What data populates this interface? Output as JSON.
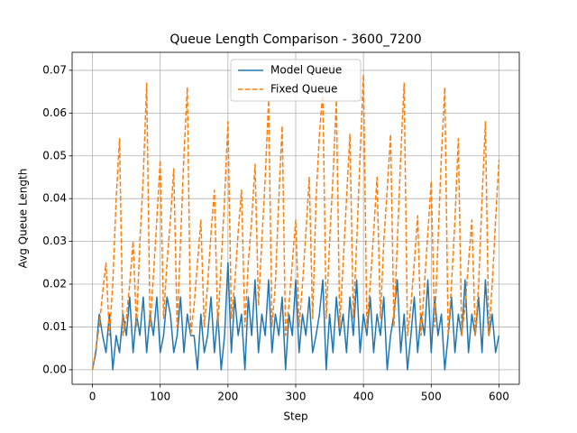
{
  "chart_data": {
    "type": "line",
    "title": "Queue Length Comparison - 3600_7200",
    "xlabel": "Step",
    "ylabel": "Avg Queue Length",
    "x": [
      0,
      5,
      10,
      15,
      20,
      25,
      30,
      35,
      40,
      45,
      50,
      55,
      60,
      65,
      70,
      75,
      80,
      85,
      90,
      95,
      100,
      105,
      110,
      115,
      120,
      125,
      130,
      135,
      140,
      145,
      150,
      155,
      160,
      165,
      170,
      175,
      180,
      185,
      190,
      195,
      200,
      205,
      210,
      215,
      220,
      225,
      230,
      235,
      240,
      245,
      250,
      255,
      260,
      265,
      270,
      275,
      280,
      285,
      290,
      295,
      300,
      305,
      310,
      315,
      320,
      325,
      330,
      335,
      340,
      345,
      350,
      355,
      360,
      365,
      370,
      375,
      380,
      385,
      390,
      395,
      400,
      405,
      410,
      415,
      420,
      425,
      430,
      435,
      440,
      445,
      450,
      455,
      460,
      465,
      470,
      475,
      480,
      485,
      490,
      495,
      500,
      505,
      510,
      515,
      520,
      525,
      530,
      535,
      540,
      545,
      550,
      555,
      560,
      565,
      570,
      575,
      580,
      585,
      590,
      595,
      600
    ],
    "series": [
      {
        "name": "Model Queue",
        "color": "#1f77b4",
        "dash": "solid",
        "values": [
          0,
          0.004,
          0.013,
          0.008,
          0.004,
          0.013,
          0,
          0.008,
          0.004,
          0.013,
          0.008,
          0.017,
          0.004,
          0.013,
          0.008,
          0.017,
          0.004,
          0.013,
          0.008,
          0.017,
          0.004,
          0.008,
          0.017,
          0.013,
          0.004,
          0.008,
          0.017,
          0.004,
          0.013,
          0.008,
          0.008,
          0,
          0.013,
          0.004,
          0.008,
          0.017,
          0.004,
          0.013,
          0,
          0.008,
          0.025,
          0.004,
          0.017,
          0.008,
          0.013,
          0,
          0.017,
          0.008,
          0.021,
          0.004,
          0.013,
          0.008,
          0.021,
          0.004,
          0.013,
          0.008,
          0.017,
          0,
          0.013,
          0.008,
          0.021,
          0.004,
          0.013,
          0.008,
          0.017,
          0.004,
          0.008,
          0.013,
          0.021,
          0,
          0.013,
          0.004,
          0.017,
          0.008,
          0.013,
          0.004,
          0.017,
          0.008,
          0.021,
          0.004,
          0.013,
          0.008,
          0.017,
          0.004,
          0.013,
          0.008,
          0.017,
          0,
          0.008,
          0.013,
          0.021,
          0.004,
          0.013,
          0,
          0.008,
          0.017,
          0.004,
          0.013,
          0.008,
          0.021,
          0.004,
          0.017,
          0.008,
          0.013,
          0,
          0.008,
          0.017,
          0.004,
          0.013,
          0.008,
          0.021,
          0.004,
          0.013,
          0.008,
          0.017,
          0.004,
          0.021,
          0.008,
          0.013,
          0.004,
          0.008
        ]
      },
      {
        "name": "Fixed Queue",
        "color": "#ff7f0e",
        "dash": "dashed",
        "values": [
          0,
          0.005,
          0.01,
          0.018,
          0.025,
          0.008,
          0.02,
          0.04,
          0.054,
          0.008,
          0.012,
          0.02,
          0.03,
          0.01,
          0.03,
          0.045,
          0.067,
          0.01,
          0.022,
          0.035,
          0.049,
          0.012,
          0.025,
          0.035,
          0.047,
          0.01,
          0.03,
          0.05,
          0.066,
          0.008,
          0.015,
          0.025,
          0.035,
          0.01,
          0.02,
          0.032,
          0.042,
          0.01,
          0.025,
          0.04,
          0.058,
          0.012,
          0.02,
          0.032,
          0.042,
          0.01,
          0.025,
          0.035,
          0.048,
          0.015,
          0.03,
          0.045,
          0.063,
          0.01,
          0.02,
          0.04,
          0.057,
          0.008,
          0.015,
          0.025,
          0.035,
          0.01,
          0.02,
          0.032,
          0.045,
          0.012,
          0.04,
          0.055,
          0.065,
          0.012,
          0.03,
          0.045,
          0.063,
          0.01,
          0.025,
          0.04,
          0.055,
          0.012,
          0.03,
          0.05,
          0.069,
          0.01,
          0.02,
          0.032,
          0.045,
          0.012,
          0.03,
          0.042,
          0.055,
          0.01,
          0.03,
          0.05,
          0.067,
          0.008,
          0.015,
          0.025,
          0.036,
          0.008,
          0.02,
          0.032,
          0.044,
          0.01,
          0.03,
          0.05,
          0.066,
          0.008,
          0.02,
          0.035,
          0.054,
          0.008,
          0.015,
          0.025,
          0.035,
          0.008,
          0.02,
          0.04,
          0.058,
          0.008,
          0.02,
          0.035,
          0.049
        ]
      }
    ],
    "xlim": [
      -30,
      630
    ],
    "ylim": [
      -0.0034,
      0.0742
    ],
    "xticks": [
      0,
      100,
      200,
      300,
      400,
      500,
      600
    ],
    "yticks": [
      {
        "value": 0,
        "label": "0.00"
      },
      {
        "value": 0.01,
        "label": "0.01"
      },
      {
        "value": 0.02,
        "label": "0.02"
      },
      {
        "value": 0.03,
        "label": "0.03"
      },
      {
        "value": 0.04,
        "label": "0.04"
      },
      {
        "value": 0.05,
        "label": "0.05"
      },
      {
        "value": 0.06,
        "label": "0.06"
      },
      {
        "value": 0.07,
        "label": "0.07"
      }
    ],
    "grid": true,
    "legend": "upper center"
  }
}
